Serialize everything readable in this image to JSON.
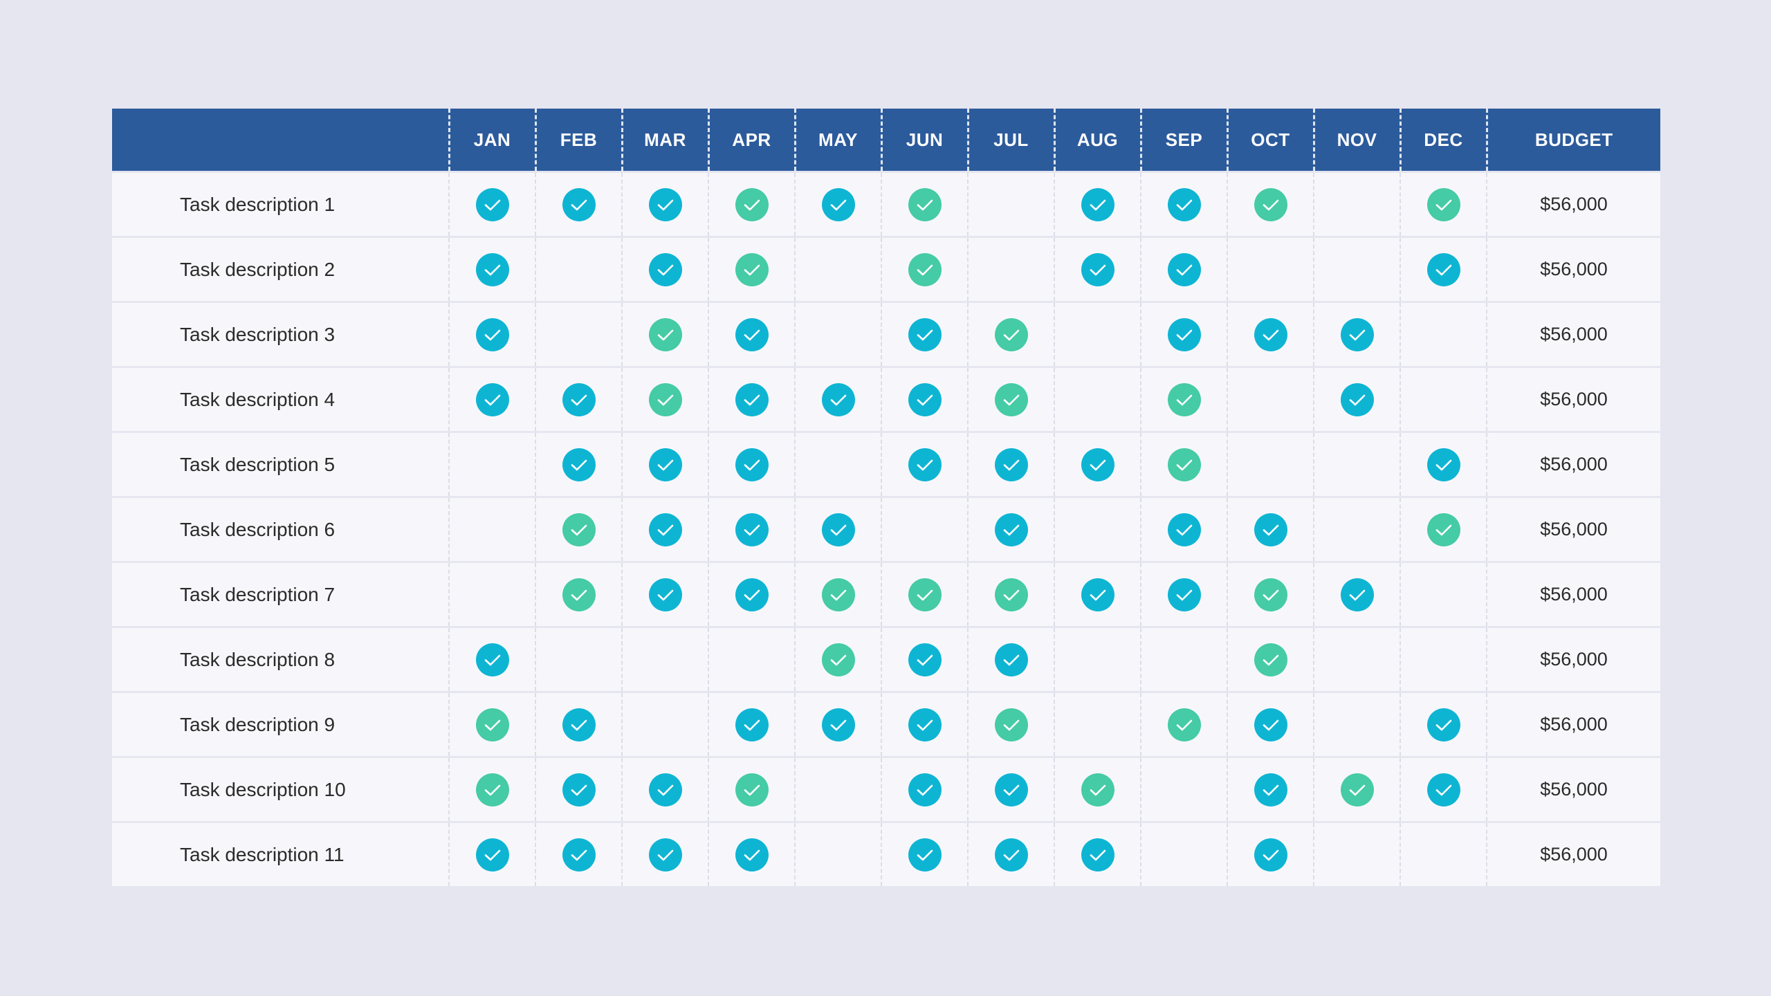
{
  "colors": {
    "header_bg": "#2c5b9c",
    "page_bg": "#e5e6ef",
    "row_bg": "#f7f7fb",
    "check_cyan": "#0eb5d3",
    "check_green": "#45cba5"
  },
  "header": {
    "months": [
      "JAN",
      "FEB",
      "MAR",
      "APR",
      "MAY",
      "JUN",
      "JUL",
      "AUG",
      "SEP",
      "OCT",
      "NOV",
      "DEC"
    ],
    "budget": "BUDGET"
  },
  "rows": [
    {
      "task": "Task description 1",
      "budget": "$56,000",
      "months": [
        "c",
        "c",
        "c",
        "g",
        "c",
        "g",
        "",
        "c",
        "c",
        "g",
        "",
        "g"
      ]
    },
    {
      "task": "Task description 2",
      "budget": "$56,000",
      "months": [
        "c",
        "",
        "c",
        "g",
        "",
        "g",
        "",
        "c",
        "c",
        "",
        "",
        "c"
      ]
    },
    {
      "task": "Task description 3",
      "budget": "$56,000",
      "months": [
        "c",
        "",
        "g",
        "c",
        "",
        "c",
        "g",
        "",
        "c",
        "c",
        "c",
        ""
      ]
    },
    {
      "task": "Task description 4",
      "budget": "$56,000",
      "months": [
        "c",
        "c",
        "g",
        "c",
        "c",
        "c",
        "g",
        "",
        "g",
        "",
        "c",
        ""
      ]
    },
    {
      "task": "Task description 5",
      "budget": "$56,000",
      "months": [
        "",
        "c",
        "c",
        "c",
        "",
        "c",
        "c",
        "c",
        "g",
        "",
        "",
        "c"
      ]
    },
    {
      "task": "Task description 6",
      "budget": "$56,000",
      "months": [
        "",
        "g",
        "c",
        "c",
        "c",
        "",
        "c",
        "",
        "c",
        "c",
        "",
        "g"
      ]
    },
    {
      "task": "Task description 7",
      "budget": "$56,000",
      "months": [
        "",
        "g",
        "c",
        "c",
        "g",
        "g",
        "g",
        "c",
        "c",
        "g",
        "c",
        ""
      ]
    },
    {
      "task": "Task description 8",
      "budget": "$56,000",
      "months": [
        "c",
        "",
        "",
        "",
        "g",
        "c",
        "c",
        "",
        "",
        "g",
        "",
        ""
      ]
    },
    {
      "task": "Task description 9",
      "budget": "$56,000",
      "months": [
        "g",
        "c",
        "",
        "c",
        "c",
        "c",
        "g",
        "",
        "g",
        "c",
        "",
        "c"
      ]
    },
    {
      "task": "Task description 10",
      "budget": "$56,000",
      "months": [
        "g",
        "c",
        "c",
        "g",
        "",
        "c",
        "c",
        "g",
        "",
        "c",
        "g",
        "c"
      ]
    },
    {
      "task": "Task description 11",
      "budget": "$56,000",
      "months": [
        "c",
        "c",
        "c",
        "c",
        "",
        "c",
        "c",
        "c",
        "",
        "c",
        "",
        ""
      ]
    }
  ]
}
